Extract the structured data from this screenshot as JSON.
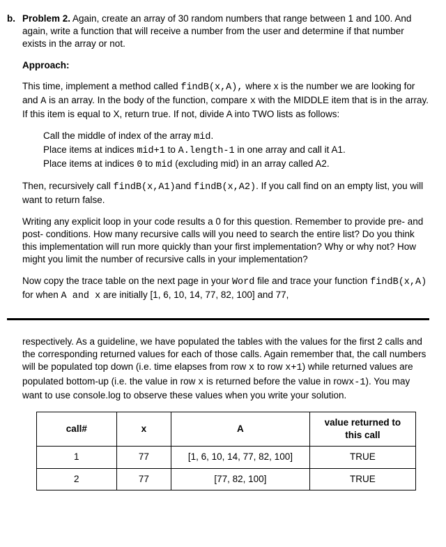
{
  "problem": {
    "label": "b.",
    "title_bold": "Problem 2.",
    "title_rest": " Again, create an array of 30 random numbers that range between 1 and 100. And again, write a function that will receive a number from the user and determine if that number exists in the array or not."
  },
  "approach_label": "Approach:",
  "para1_a": "This time, implement a method called ",
  "para1_code1": "findB(x,A),",
  "para1_b": " where x is the number we are looking for and ",
  "para1_code2": "A",
  "para1_c": " is an array.  In the body of the function, compare ",
  "para1_code3": "x",
  "para1_d": " with the MIDDLE item that is in the array. If this item is equal to X, return true.  If not, divide A into TWO lists as follows:",
  "steps": {
    "s1_a": "Call the middle of index of the array ",
    "s1_code": "mid",
    "s1_b": ".",
    "s2_a": "Place items at indices ",
    "s2_code1": "mid+1",
    "s2_b": " to ",
    "s2_code2": "A.length-1",
    "s2_c": " in one array and call it A1.",
    "s3_a": "Place items at indices ",
    "s3_code1": "0",
    "s3_b": " to ",
    "s3_code2": "mid",
    "s3_c": " (excluding mid) in an array called A2."
  },
  "para2_a": "Then, recursively call ",
  "para2_code1": "findB(x,A1)",
  "para2_b": "and ",
  "para2_code2": "findB(x,A2)",
  "para2_c": ".  If you call find on an empty list, you will want to return false.",
  "para3": "Writing any explicit loop in your code results a 0 for this question. Remember to provide pre- and post- conditions. How many recursive calls will you need to search the entire list?  Do you think this implementation will run more quickly than your first implementation?  Why or why not? How might you limit the number of recursive calls in your implementation?",
  "para4_a": "Now copy the trace table on the next page in your ",
  "para4_code1": "Word",
  "para4_b": " file and trace your function ",
  "para4_code2": "findB(x,A)",
  "para4_c": " for when ",
  "para4_code3": "A and x",
  "para4_d": " are initially [1, 6, 10, 14, 77, 82, 100] and 77,",
  "para5_a": "respectively. As a guideline, we have populated the tables with the values for the first 2 calls and the corresponding returned values for each of those calls. Again remember that, the call numbers will be populated top down (i.e. time elapses from row ",
  "para5_code1": "x",
  "para5_b": " to row ",
  "para5_code2": "x+1",
  "para5_c": ") while returned values are populated bottom-up (i.e. the value in row ",
  "para5_code3": "x",
  "para5_d": " is returned before the value in row",
  "para5_code4": "x-1",
  "para5_e": "). You may want to use console.log to observe these values when you write your solution.",
  "table": {
    "headers": [
      "call#",
      "x",
      "A",
      "value returned to this call"
    ],
    "rows": [
      [
        "1",
        "77",
        "[1, 6, 10, 14, 77, 82, 100]",
        "TRUE"
      ],
      [
        "2",
        "77",
        "[77, 82, 100]",
        "TRUE"
      ]
    ]
  }
}
